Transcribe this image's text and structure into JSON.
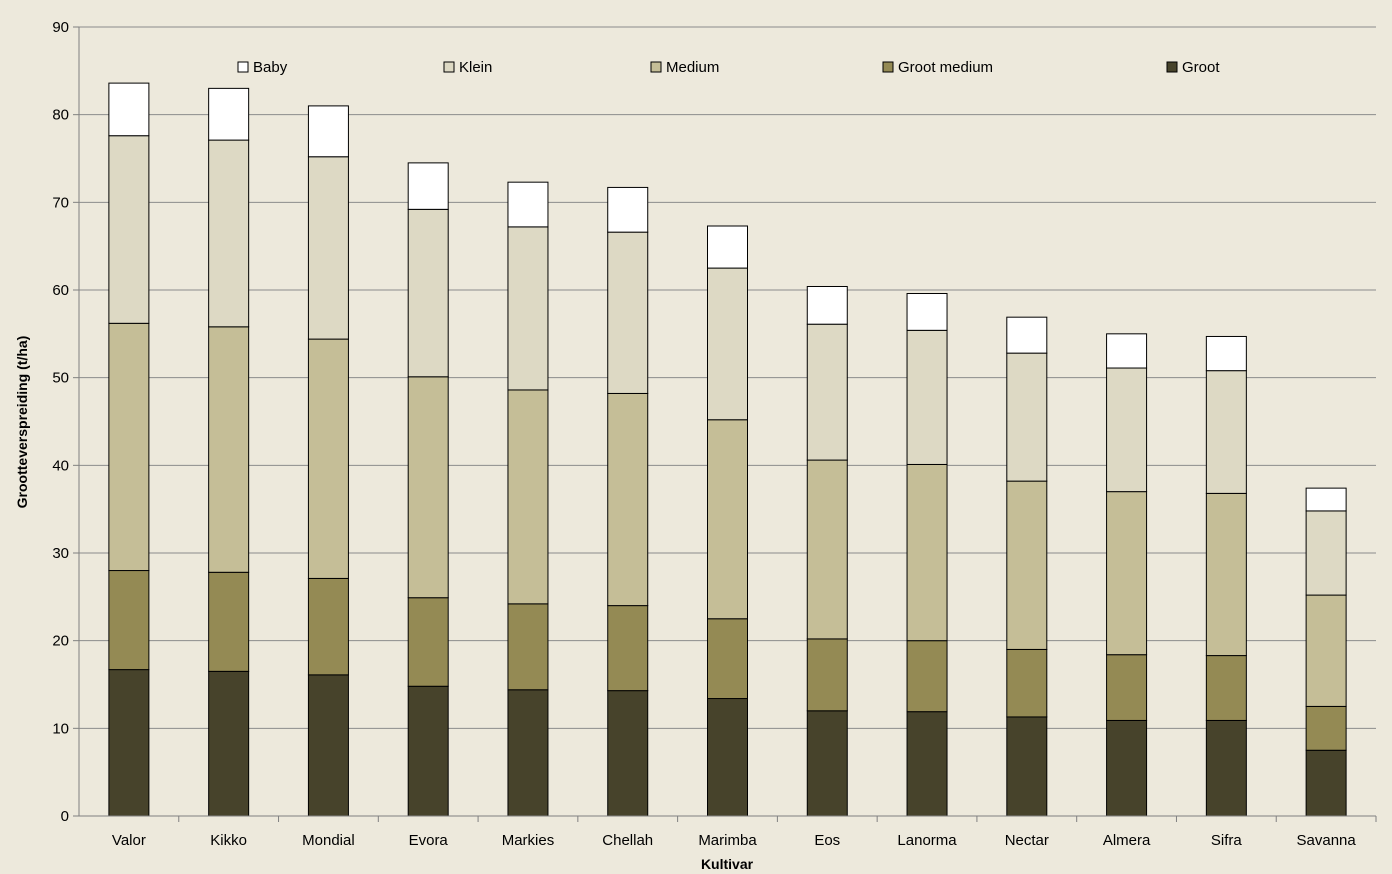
{
  "chart_data": {
    "type": "bar",
    "stacked": true,
    "title": "",
    "xlabel": "Kultivar",
    "ylabel": "Grootteverspreiding (t/ha)",
    "ylim": [
      0,
      90
    ],
    "ytick_step": 10,
    "grid": true,
    "legend_position": "top",
    "categories": [
      "Valor",
      "Kikko",
      "Mondial",
      "Evora",
      "Markies",
      "Chellah",
      "Marimba",
      "Eos",
      "Lanorma",
      "Nectar",
      "Almera",
      "Sifra",
      "Savanna"
    ],
    "series": [
      {
        "name": "Groot",
        "color": "#47432B",
        "values": [
          16.7,
          16.5,
          16.1,
          14.8,
          14.4,
          14.3,
          13.4,
          12.0,
          11.9,
          11.3,
          10.9,
          10.9,
          7.5
        ]
      },
      {
        "name": "Groot medium",
        "color": "#948A54",
        "values": [
          11.3,
          11.3,
          11.0,
          10.1,
          9.8,
          9.7,
          9.1,
          8.2,
          8.1,
          7.7,
          7.5,
          7.4,
          5.0
        ]
      },
      {
        "name": "Medium",
        "color": "#C5BE97",
        "values": [
          28.2,
          28.0,
          27.3,
          25.2,
          24.4,
          24.2,
          22.7,
          20.4,
          20.1,
          19.2,
          18.6,
          18.5,
          12.7
        ]
      },
      {
        "name": "Klein",
        "color": "#DDD9C4",
        "values": [
          21.4,
          21.3,
          20.8,
          19.1,
          18.6,
          18.4,
          17.3,
          15.5,
          15.3,
          14.6,
          14.1,
          14.0,
          9.6
        ]
      },
      {
        "name": "Baby",
        "color": "#FFFFFF",
        "values": [
          6.0,
          5.9,
          5.8,
          5.3,
          5.1,
          5.1,
          4.8,
          4.3,
          4.2,
          4.1,
          3.9,
          3.9,
          2.6
        ]
      }
    ],
    "legend_order": [
      "Baby",
      "Klein",
      "Medium",
      "Groot medium",
      "Groot"
    ]
  }
}
